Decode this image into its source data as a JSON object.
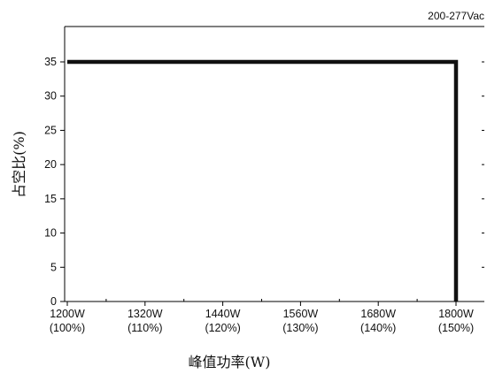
{
  "chart_data": {
    "type": "line",
    "corner_label": "200-277Vac",
    "xlabel": "峰值功率(W)",
    "ylabel": "占空比(%)",
    "categories": [
      [
        "1200W",
        "(100%)"
      ],
      [
        "1320W",
        "(110%)"
      ],
      [
        "1440W",
        "(120%)"
      ],
      [
        "1560W",
        "(130%)"
      ],
      [
        "1680W",
        "(140%)"
      ],
      [
        "1800W",
        "(150%)"
      ]
    ],
    "x_range": [
      1200,
      1800
    ],
    "y_ticks": [
      "0",
      "5",
      "10",
      "15",
      "20",
      "25",
      "30",
      "35"
    ],
    "ylim": [
      0,
      40
    ],
    "grid": false,
    "series": [
      {
        "points": [
          {
            "x": 1200,
            "y": 35
          },
          {
            "x": 1800,
            "y": 35
          },
          {
            "x": 1800,
            "y": 0
          }
        ]
      }
    ]
  }
}
